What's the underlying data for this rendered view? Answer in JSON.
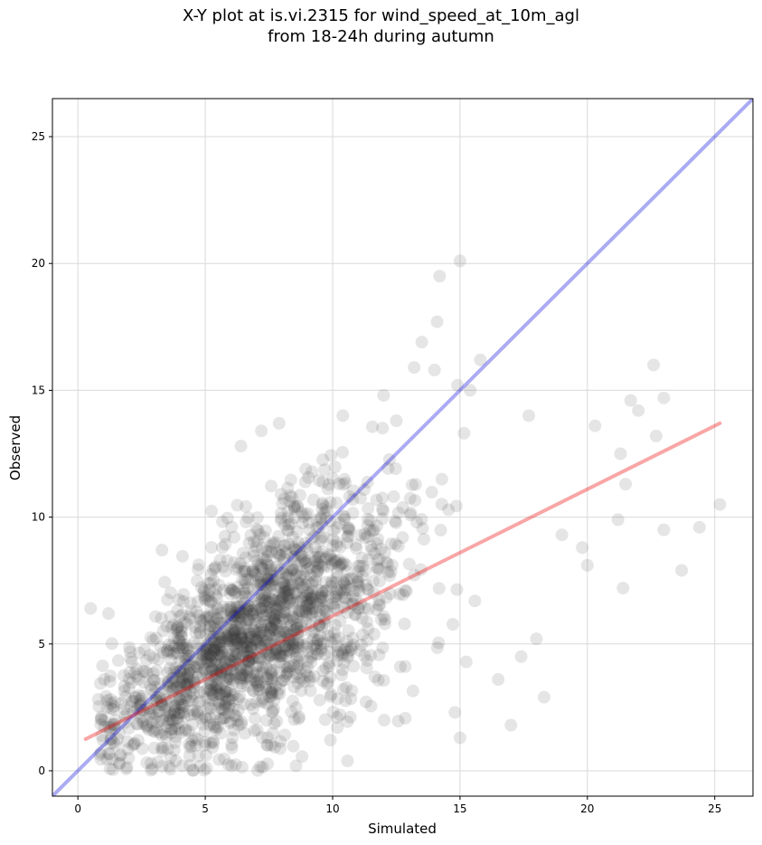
{
  "chart_data": {
    "type": "scatter",
    "title_line1": "X-Y plot at is.vi.2315 for wind_speed_at_10m_agl",
    "title_line2": "from 18-24h during autumn",
    "xlabel": "Simulated",
    "ylabel": "Observed",
    "xlim": [
      -1,
      26.5
    ],
    "ylim": [
      -1,
      26.5
    ],
    "xticks": [
      0,
      5,
      10,
      15,
      20,
      25
    ],
    "yticks": [
      0,
      5,
      10,
      15,
      20,
      25
    ],
    "grid": true,
    "colors": {
      "points": "#333333",
      "identity_line": "#0000dd",
      "fit_line": "#ee0000",
      "grid": "#d9d9d9"
    },
    "identity_line": {
      "x": [
        -1,
        26.5
      ],
      "y": [
        -1,
        26.5
      ]
    },
    "fit_line": {
      "x": [
        0.3,
        25.2
      ],
      "y": [
        1.25,
        13.7
      ]
    },
    "outlier_points": {
      "x": [
        15.0,
        14.2,
        14.1,
        13.5,
        14.0,
        13.2,
        15.8,
        22.6,
        23.0,
        22.0,
        21.7,
        20.3,
        21.3,
        25.2,
        23.0,
        24.4,
        23.7,
        19.8,
        20.0,
        21.4,
        17.7,
        17.4,
        18.0,
        12.0,
        12.5,
        10.4,
        7.2,
        7.9,
        6.4,
        0.5,
        3.3,
        1.2,
        15.0,
        14.8,
        16.5,
        17.0,
        18.3,
        14.9,
        15.4,
        19.0,
        21.5,
        21.2,
        22.7
      ],
      "y": [
        20.1,
        19.5,
        17.7,
        16.9,
        15.8,
        15.9,
        16.2,
        16.0,
        14.7,
        14.2,
        14.6,
        13.6,
        12.5,
        10.5,
        9.5,
        9.6,
        7.9,
        8.8,
        8.1,
        7.2,
        14.0,
        4.5,
        5.2,
        14.8,
        13.8,
        14.0,
        13.4,
        13.7,
        12.8,
        6.4,
        8.7,
        6.2,
        1.3,
        2.3,
        3.6,
        1.8,
        2.9,
        15.2,
        15.0,
        9.3,
        11.3,
        9.9,
        13.2
      ]
    },
    "cluster_summary": {
      "count": 1800,
      "seed": 12345,
      "x_center": 7.0,
      "x_spread": 4.6,
      "y_slope": 0.5,
      "y_intercept": 1.25,
      "y_noise": 2.6
    }
  }
}
